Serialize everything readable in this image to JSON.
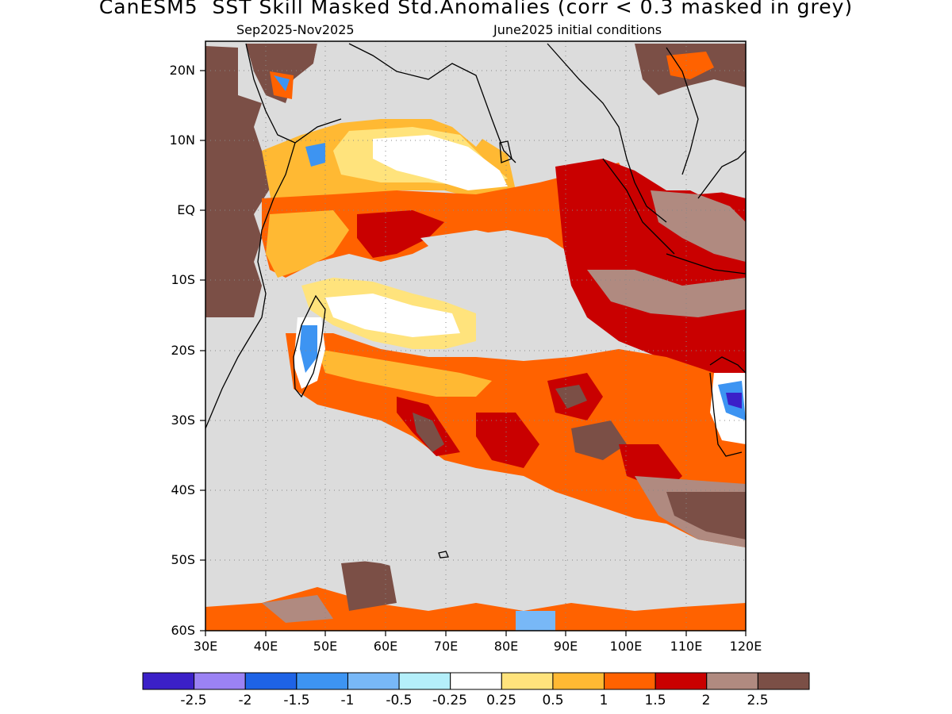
{
  "title": "CanESM5  SST Skill Masked Std.Anomalies (corr < 0.3 masked in grey)",
  "subtitle_left": "Sep2025-Nov2025",
  "subtitle_right": "June2025 initial conditions",
  "y_axis_ticks": [
    "20N",
    "10N",
    "EQ",
    "10S",
    "20S",
    "30S",
    "40S",
    "50S",
    "60S"
  ],
  "x_axis_ticks": [
    "30E",
    "40E",
    "50E",
    "60E",
    "70E",
    "80E",
    "90E",
    "100E",
    "110E",
    "120E"
  ],
  "colorbar": {
    "labels": [
      "-2.5",
      "-2",
      "-1.5",
      "-1",
      "-0.5",
      "-0.25",
      "0.25",
      "0.5",
      "1",
      "1.5",
      "2",
      "2.5"
    ],
    "colors": [
      "#3b20c8",
      "#9b82f4",
      "#1e63e6",
      "#3d94f2",
      "#78b8f7",
      "#b4effa",
      "#ffffff",
      "#ffe37c",
      "#ffb933",
      "#ff6200",
      "#c90000",
      "#b08a80",
      "#7b4f46"
    ]
  },
  "colors": {
    "mask": "#dcdcdc",
    "land_outline": "#000000"
  }
}
